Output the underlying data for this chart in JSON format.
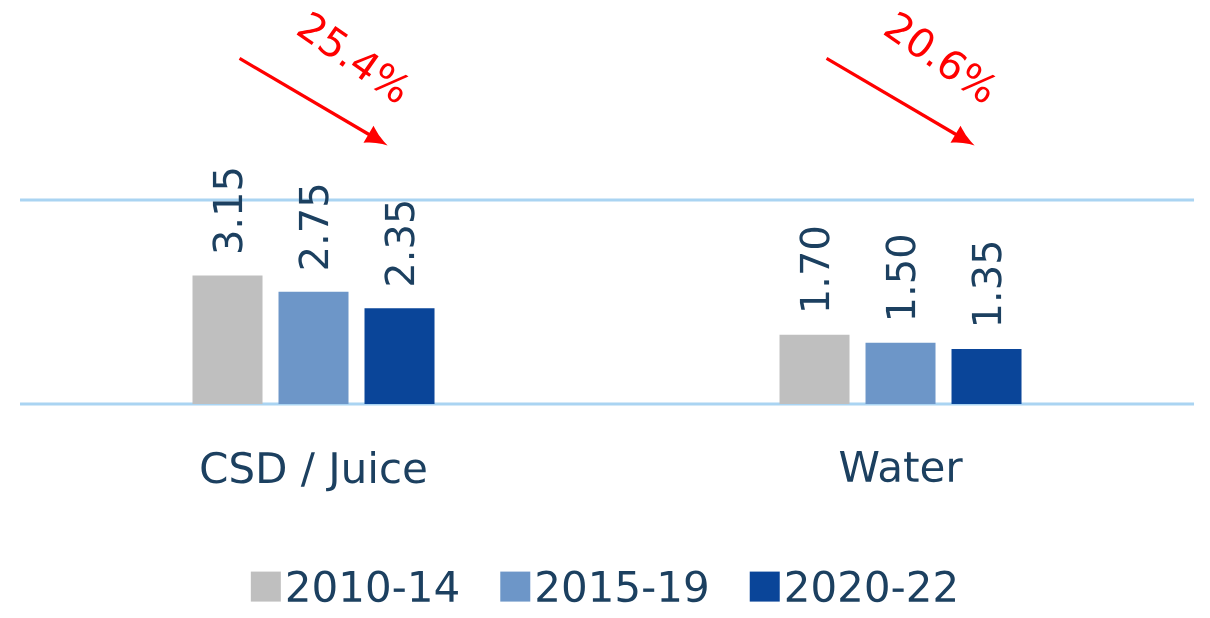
{
  "chart_data": {
    "type": "bar",
    "categories": [
      "CSD / Juice",
      "Water"
    ],
    "series": [
      {
        "name": "2010-14",
        "color": "#bfbfbf",
        "values": [
          3.15,
          1.7
        ],
        "value_labels": [
          "3.15",
          "1.70"
        ]
      },
      {
        "name": "2015-19",
        "color": "#6d96c8",
        "values": [
          2.75,
          1.5
        ],
        "value_labels": [
          "2.75",
          "1.50"
        ]
      },
      {
        "name": "2020-22",
        "color": "#0a4599",
        "values": [
          2.35,
          1.35
        ],
        "value_labels": [
          "2.35",
          "1.35"
        ]
      }
    ],
    "ylim": [
      0,
      5
    ],
    "tick_labels": "x",
    "legend": "bottom",
    "annotations": [
      "25.4%",
      "20.6%"
    ]
  }
}
